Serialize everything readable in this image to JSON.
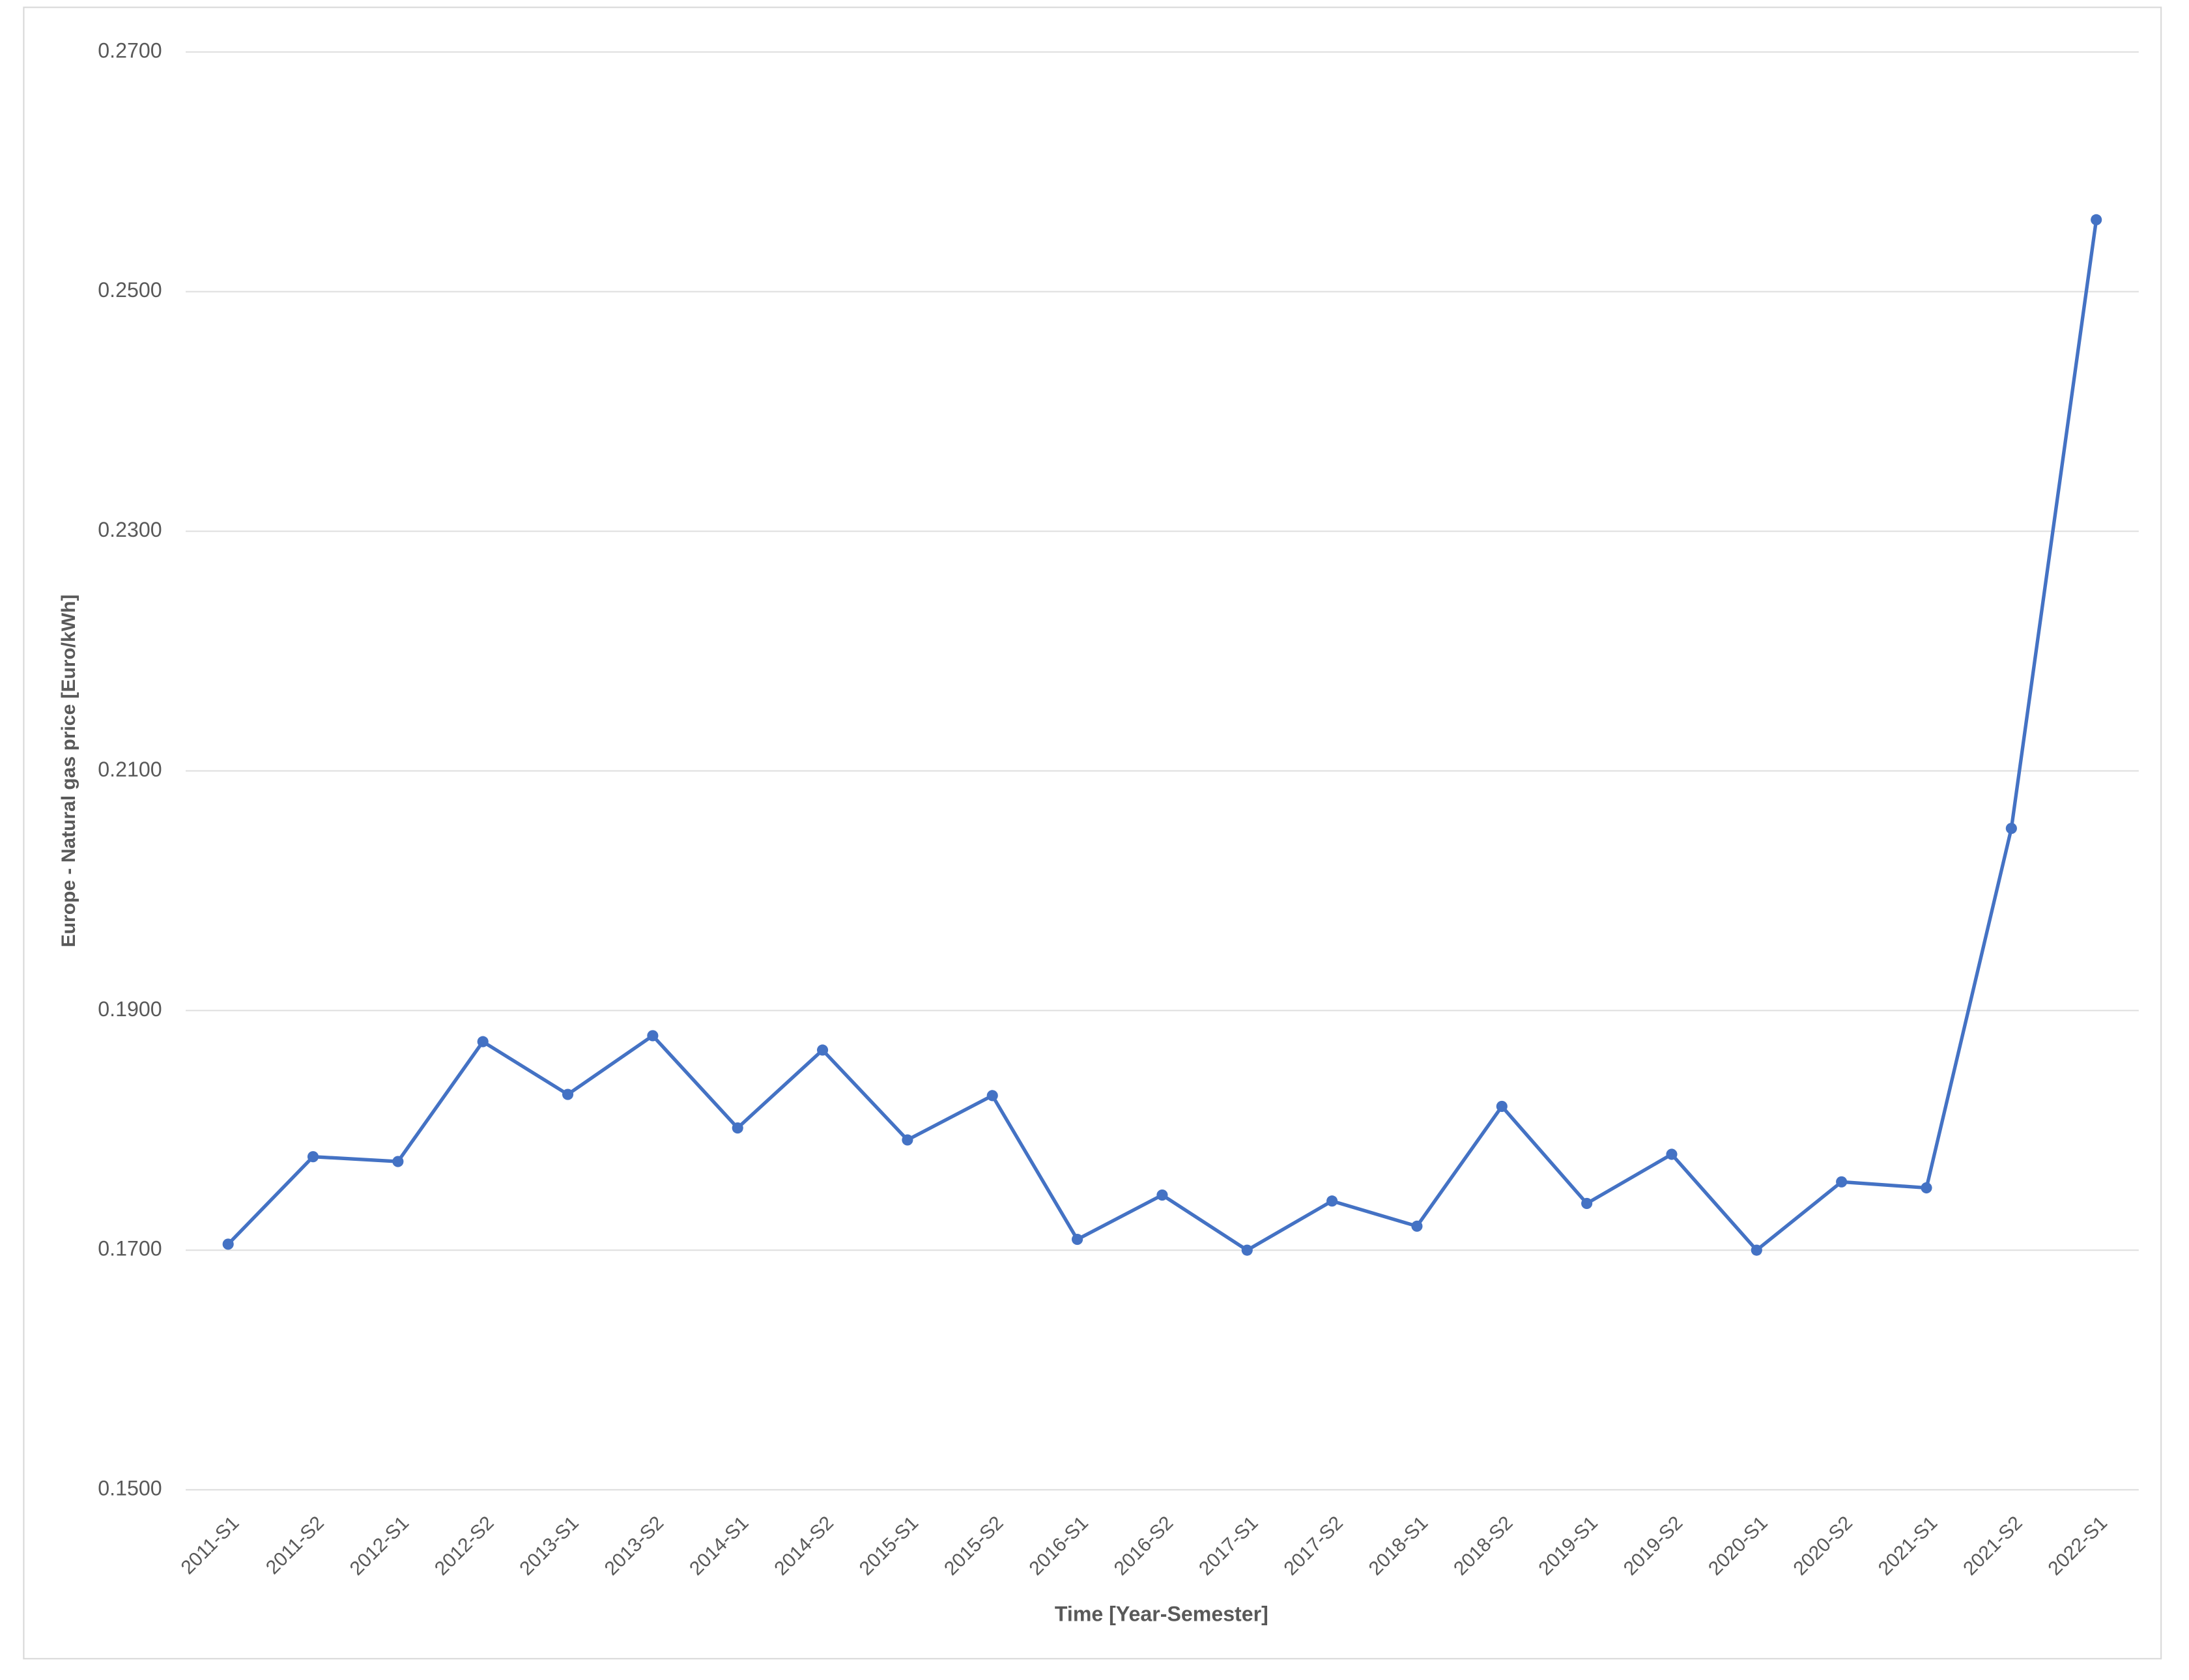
{
  "chart_data": {
    "type": "line",
    "y_label": "Europe - Natural gas price [Euro/kWh]",
    "x_label": "Time [Year-Semester]",
    "categories": [
      "2011-S1",
      "2011-S2",
      "2012-S1",
      "2012-S2",
      "2013-S1",
      "2013-S2",
      "2014-S1",
      "2014-S2",
      "2015-S1",
      "2015-S2",
      "2016-S1",
      "2016-S2",
      "2017-S1",
      "2017-S2",
      "2018-S1",
      "2018-S2",
      "2019-S1",
      "2019-S2",
      "2020-S1",
      "2020-S2",
      "2021-S1",
      "2021-S2",
      "2022-S1"
    ],
    "series": [
      {
        "color": "#4472c4",
        "values": [
          0.1705,
          0.1778,
          0.1774,
          0.1874,
          0.183,
          0.1879,
          0.1802,
          0.1867,
          0.1792,
          0.1829,
          0.1709,
          0.1746,
          0.17,
          0.1741,
          0.172,
          0.182,
          0.1739,
          0.178,
          0.17,
          0.1757,
          0.1752,
          0.2052,
          0.256
        ]
      }
    ],
    "ylim": [
      0.15,
      0.27
    ],
    "yticks": [
      {
        "value": 0.15,
        "label": "0.1500"
      },
      {
        "value": 0.17,
        "label": "0.1700"
      },
      {
        "value": 0.19,
        "label": "0.1900"
      },
      {
        "value": 0.21,
        "label": "0.2100"
      },
      {
        "value": 0.23,
        "label": "0.2300"
      },
      {
        "value": 0.25,
        "label": "0.2500"
      },
      {
        "value": 0.27,
        "label": "0.2700"
      }
    ],
    "grid": true
  }
}
